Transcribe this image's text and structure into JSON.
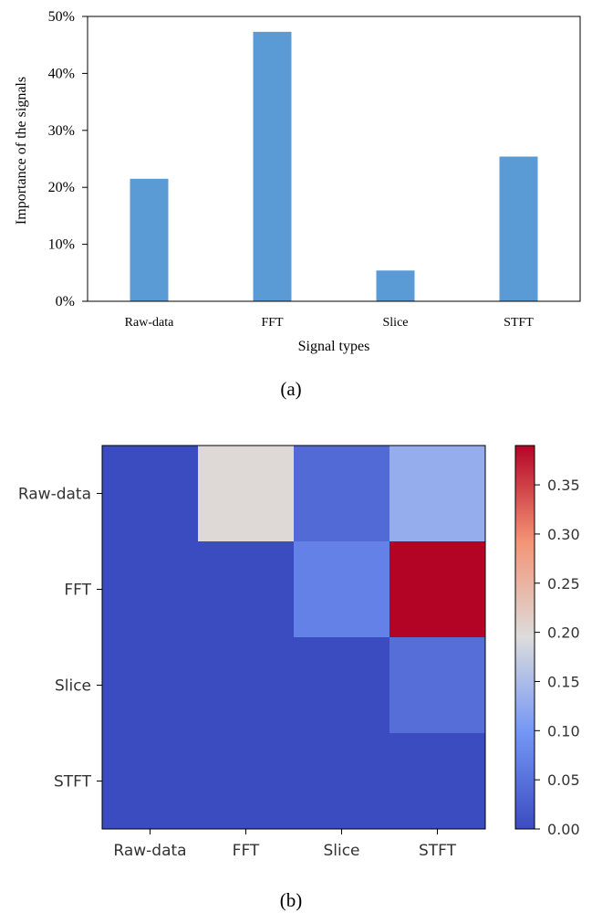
{
  "chart_data": [
    {
      "type": "bar",
      "panel_label": "(a)",
      "categories": [
        "Raw-data",
        "FFT",
        "Slice",
        "STFT"
      ],
      "values": [
        21.5,
        47.3,
        5.4,
        25.4
      ],
      "xlabel": "Signal types",
      "ylabel": "Importance of the signals",
      "ylim": [
        0,
        50
      ],
      "yticks": [
        0,
        10,
        20,
        30,
        40,
        50
      ],
      "ytick_labels": [
        "0%",
        "10%",
        "20%",
        "30%",
        "40%",
        "50%"
      ],
      "bar_color": "#5b9bd5",
      "grid": false
    },
    {
      "type": "heatmap",
      "panel_label": "(b)",
      "x_categories": [
        "Raw-data",
        "FFT",
        "Slice",
        "STFT"
      ],
      "y_categories": [
        "Raw-data",
        "FFT",
        "Slice",
        "STFT"
      ],
      "values": [
        [
          0.0,
          0.2,
          0.04,
          0.13
        ],
        [
          0.0,
          0.0,
          0.07,
          0.39
        ],
        [
          0.0,
          0.0,
          0.0,
          0.045
        ],
        [
          0.0,
          0.0,
          0.0,
          0.0
        ]
      ],
      "colormap": "coolwarm",
      "colorbar_range": [
        0,
        0.39
      ],
      "colorbar_ticks": [
        0.0,
        0.05,
        0.1,
        0.15,
        0.2,
        0.25,
        0.3,
        0.35
      ],
      "colorbar_tick_labels": [
        "0.00",
        "0.05",
        "0.10",
        "0.15",
        "0.20",
        "0.25",
        "0.30",
        "0.35"
      ]
    }
  ]
}
